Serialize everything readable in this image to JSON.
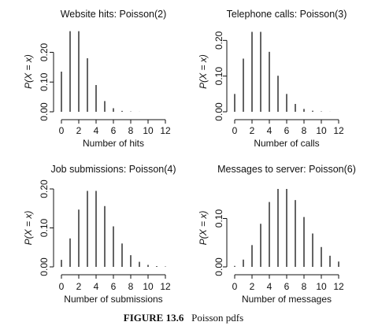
{
  "figure": {
    "label": "FIGURE 13.6",
    "caption": "Poisson pdfs"
  },
  "chart_data": [
    {
      "type": "bar",
      "title": "Website hits: Poisson(2)",
      "xlabel": "Number of hits",
      "ylabel": "P(X = x)",
      "x": [
        0,
        1,
        2,
        3,
        4,
        5,
        6,
        7,
        8,
        9,
        10,
        11,
        12
      ],
      "values": [
        0.135,
        0.271,
        0.271,
        0.18,
        0.09,
        0.036,
        0.012,
        0.003,
        0.001,
        0.0002,
        4e-05,
        1e-05,
        0.0
      ],
      "xticks": [
        "0",
        "2",
        "4",
        "6",
        "8",
        "10",
        "12"
      ],
      "yticks": [
        "0.00",
        "0.10",
        "0.20"
      ],
      "ylim": [
        0,
        0.27
      ]
    },
    {
      "type": "bar",
      "title": "Telephone calls: Poisson(3)",
      "xlabel": "Number of calls",
      "ylabel": "P(X = x)",
      "x": [
        0,
        1,
        2,
        3,
        4,
        5,
        6,
        7,
        8,
        9,
        10,
        11,
        12
      ],
      "values": [
        0.05,
        0.149,
        0.224,
        0.224,
        0.168,
        0.101,
        0.05,
        0.022,
        0.008,
        0.003,
        0.001,
        0.0002,
        5e-05
      ],
      "xticks": [
        "0",
        "2",
        "4",
        "6",
        "8",
        "10",
        "12"
      ],
      "yticks": [
        "0.00",
        "0.10",
        "0.20"
      ],
      "ylim": [
        0,
        0.225
      ]
    },
    {
      "type": "bar",
      "title": "Job submissions: Poisson(4)",
      "xlabel": "Number of submissions",
      "ylabel": "P(X = x)",
      "x": [
        0,
        1,
        2,
        3,
        4,
        5,
        6,
        7,
        8,
        9,
        10,
        11,
        12
      ],
      "values": [
        0.018,
        0.073,
        0.147,
        0.195,
        0.195,
        0.156,
        0.104,
        0.06,
        0.03,
        0.013,
        0.005,
        0.002,
        0.001
      ],
      "xticks": [
        "0",
        "2",
        "4",
        "6",
        "8",
        "10",
        "12"
      ],
      "yticks": [
        "0.00",
        "0.10",
        "0.20"
      ],
      "ylim": [
        0,
        0.2
      ]
    },
    {
      "type": "bar",
      "title": "Messages to server: Poisson(6)",
      "xlabel": "Number of messages",
      "ylabel": "P(X = x)",
      "x": [
        0,
        1,
        2,
        3,
        4,
        5,
        6,
        7,
        8,
        9,
        10,
        11,
        12
      ],
      "values": [
        0.002,
        0.015,
        0.045,
        0.089,
        0.134,
        0.161,
        0.161,
        0.138,
        0.103,
        0.069,
        0.041,
        0.023,
        0.011
      ],
      "xticks": [
        "0",
        "2",
        "4",
        "6",
        "8",
        "10",
        "12"
      ],
      "yticks": [
        "0.00",
        "0.10"
      ],
      "ylim": [
        0,
        0.161
      ]
    }
  ]
}
